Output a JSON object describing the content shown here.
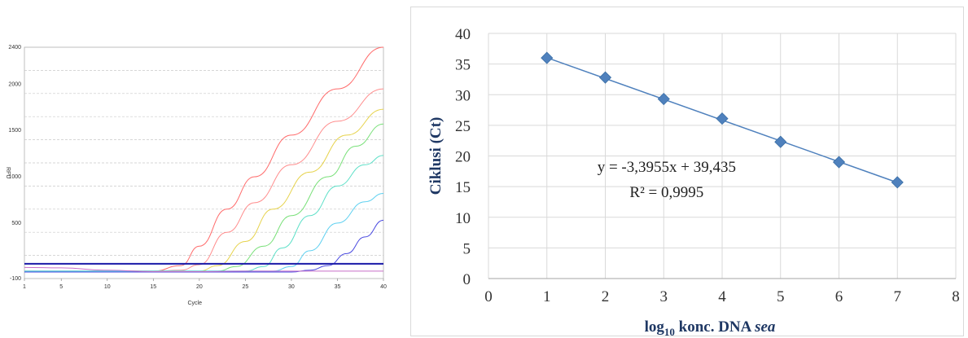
{
  "chart_data": [
    {
      "type": "line",
      "xlabel": "Cycle",
      "ylabel": "RFU",
      "xlim": [
        1,
        40
      ],
      "ylim": [
        -100,
        2400
      ],
      "x_ticks": [
        1,
        5,
        10,
        15,
        20,
        25,
        30,
        35,
        40
      ],
      "y_ticks": [
        -100,
        500,
        1000,
        1500,
        2000,
        2400
      ],
      "grid": true,
      "threshold": 60,
      "series": [
        {
          "color": "#ff6b6b",
          "values": [
            [
              1,
              -20
            ],
            [
              10,
              -25
            ],
            [
              15,
              -20
            ],
            [
              18,
              40
            ],
            [
              20,
              250
            ],
            [
              23,
              650
            ],
            [
              26,
              1000
            ],
            [
              30,
              1450
            ],
            [
              35,
              1950
            ],
            [
              40,
              2400
            ]
          ]
        },
        {
          "color": "#ff8c8c",
          "values": [
            [
              1,
              -20
            ],
            [
              15,
              -20
            ],
            [
              18,
              -10
            ],
            [
              20,
              50
            ],
            [
              23,
              400
            ],
            [
              26,
              720
            ],
            [
              30,
              1130
            ],
            [
              35,
              1600
            ],
            [
              40,
              1950
            ]
          ]
        },
        {
          "color": "#e6d24a",
          "values": [
            [
              1,
              -20
            ],
            [
              20,
              -20
            ],
            [
              22,
              40
            ],
            [
              25,
              300
            ],
            [
              28,
              650
            ],
            [
              32,
              1050
            ],
            [
              36,
              1450
            ],
            [
              40,
              1730
            ]
          ]
        },
        {
          "color": "#78e078",
          "values": [
            [
              1,
              -20
            ],
            [
              22,
              -20
            ],
            [
              24,
              30
            ],
            [
              27,
              250
            ],
            [
              30,
              580
            ],
            [
              34,
              1000
            ],
            [
              37,
              1330
            ],
            [
              40,
              1570
            ]
          ]
        },
        {
          "color": "#5ee0c8",
          "values": [
            [
              1,
              -20
            ],
            [
              25,
              -20
            ],
            [
              27,
              30
            ],
            [
              29,
              230
            ],
            [
              32,
              580
            ],
            [
              35,
              900
            ],
            [
              38,
              1130
            ],
            [
              40,
              1230
            ]
          ]
        },
        {
          "color": "#5ed0f0",
          "values": [
            [
              1,
              -20
            ],
            [
              28,
              -20
            ],
            [
              30,
              30
            ],
            [
              32,
              200
            ],
            [
              35,
              500
            ],
            [
              38,
              730
            ],
            [
              40,
              820
            ]
          ]
        },
        {
          "color": "#4a4ae0",
          "values": [
            [
              1,
              -30
            ],
            [
              30,
              -30
            ],
            [
              32,
              -10
            ],
            [
              34,
              40
            ],
            [
              36,
              170
            ],
            [
              38,
              350
            ],
            [
              40,
              530
            ]
          ]
        },
        {
          "color": "#c86ec8",
          "values": [
            [
              1,
              20
            ],
            [
              5,
              15
            ],
            [
              10,
              -10
            ],
            [
              15,
              -25
            ],
            [
              20,
              -25
            ],
            [
              25,
              -20
            ],
            [
              30,
              -20
            ],
            [
              35,
              -20
            ],
            [
              40,
              -20
            ]
          ]
        }
      ]
    },
    {
      "type": "scatter",
      "xlabel": "log10 konc. DNA sea",
      "ylabel": "Ciklusi (Ct)",
      "xlim": [
        0,
        8
      ],
      "ylim": [
        0,
        40
      ],
      "x_ticks": [
        0,
        1,
        2,
        3,
        4,
        5,
        6,
        7,
        8
      ],
      "y_ticks": [
        0,
        5,
        10,
        15,
        20,
        25,
        30,
        35,
        40
      ],
      "grid": true,
      "series": [
        {
          "color": "#4f81bd",
          "x": [
            1,
            2,
            3,
            4,
            5,
            6,
            7
          ],
          "values": [
            36.0,
            32.8,
            29.3,
            26.1,
            22.3,
            19.0,
            15.7
          ]
        }
      ],
      "trendline": {
        "slope": -3.3955,
        "intercept": 39.435
      },
      "equation": "y = -3,3955x + 39,435",
      "r_squared": "R² = 0,9995"
    }
  ],
  "right_axis": {
    "x_label_prefix": "log",
    "x_label_sub": "10",
    "x_label_mid": " konc. DNA ",
    "x_label_italic": "sea",
    "y_label": "Ciklusi (Ct)"
  }
}
